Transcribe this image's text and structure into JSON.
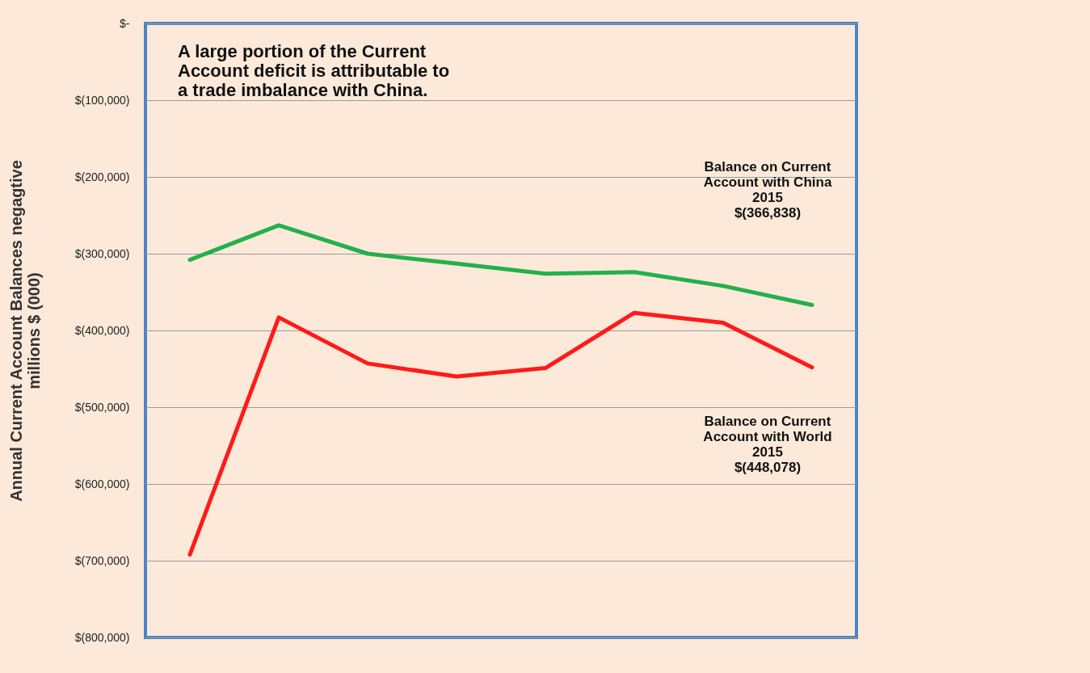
{
  "chart_data": {
    "type": "line",
    "ylabel": "Annual Current Account Balances negagtive\nmillions $ (000)",
    "categories": [
      null,
      null,
      null,
      null,
      null,
      null,
      null,
      null
    ],
    "series": [
      {
        "color": "#22b14c",
        "values": [
          -308000,
          -263000,
          -300000,
          -313000,
          -326000,
          -324000,
          -342000,
          -366838
        ]
      },
      {
        "color": "#ff1a1a",
        "values": [
          -692000,
          -383000,
          -443000,
          -460000,
          -449000,
          -377000,
          -390000,
          -448078
        ]
      }
    ],
    "ylim": [
      -800000,
      0
    ],
    "yticks": [
      {
        "value": 0,
        "label": "$-"
      },
      {
        "value": -100000,
        "label": "$(100,000)"
      },
      {
        "value": -200000,
        "label": "$(200,000)"
      },
      {
        "value": -300000,
        "label": "$(300,000)"
      },
      {
        "value": -400000,
        "label": "$(400,000)"
      },
      {
        "value": -500000,
        "label": "$(500,000)"
      },
      {
        "value": -600000,
        "label": "$(600,000)"
      },
      {
        "value": -700000,
        "label": "$(700,000)"
      },
      {
        "value": -800000,
        "label": "$(800,000)"
      }
    ],
    "grid": "y",
    "tick_labels": "y",
    "annotations": [
      "A large portion of the Current\nAccount deficit is attributable to\na trade imbalance with China.",
      "Balance on Current\nAccount with China\n2015\n$(366,838)",
      "Balance on Current\nAccount with World\n2015\n$(448,078)"
    ]
  }
}
